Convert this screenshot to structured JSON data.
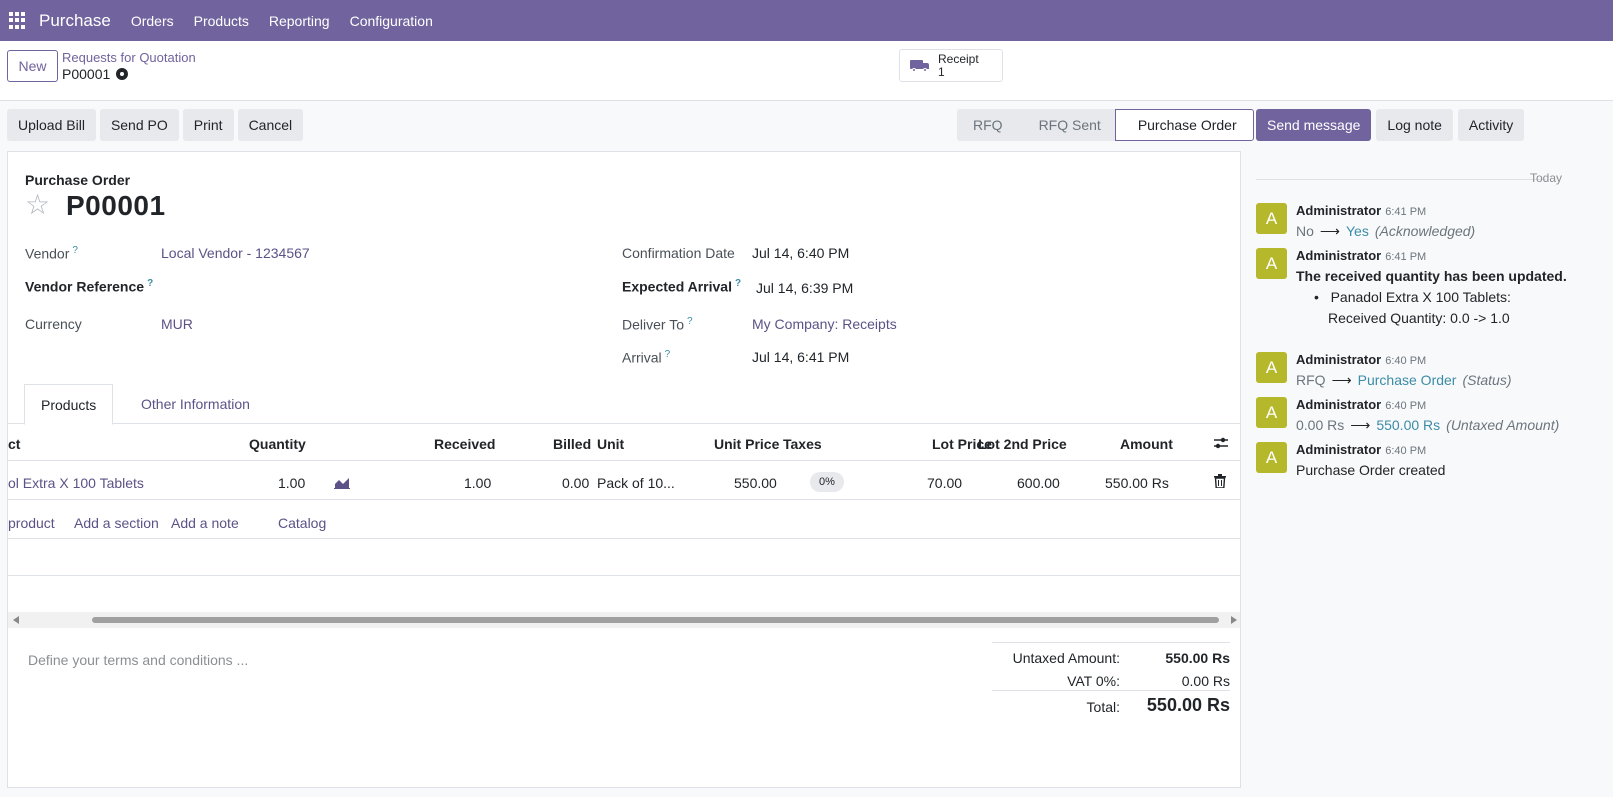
{
  "navbar": {
    "app_name": "Purchase",
    "menu": [
      "Orders",
      "Products",
      "Reporting",
      "Configuration"
    ]
  },
  "control": {
    "new_label": "New",
    "breadcrumb": "Requests for Quotation",
    "record": "P00001",
    "smart_button": {
      "label": "Receipt",
      "count": "1",
      "icon": "truck-icon"
    }
  },
  "actions": [
    "Upload Bill",
    "Send PO",
    "Print",
    "Cancel"
  ],
  "statusbar": {
    "stages": [
      "RFQ",
      "RFQ Sent",
      "Purchase Order"
    ],
    "active": "Purchase Order"
  },
  "chatter_actions": [
    "Send message",
    "Log note",
    "Activity"
  ],
  "form": {
    "doc_type": "Purchase Order",
    "name": "P00001",
    "fields": {
      "vendor_label": "Vendor",
      "vendor": "Local Vendor - 1234567",
      "vendor_ref_label": "Vendor Reference",
      "currency_label": "Currency",
      "currency": "MUR",
      "confirmation_date_label": "Confirmation Date",
      "confirmation_date": "Jul 14, 6:40 PM",
      "expected_arrival_label": "Expected Arrival",
      "expected_arrival": "Jul 14, 6:39 PM",
      "deliver_to_label": "Deliver To",
      "deliver_to": "My Company: Receipts",
      "arrival_label": "Arrival",
      "arrival": "Jul 14, 6:41 PM",
      "help_mark": "?"
    },
    "tabs": [
      "Products",
      "Other Information"
    ],
    "table": {
      "headers": [
        "ct",
        "Quantity",
        "Received",
        "Billed",
        "Unit",
        "Unit Price",
        "Taxes",
        "Lot Price",
        "Lot 2nd Price",
        "Amount"
      ],
      "row": {
        "product": "ol Extra X 100 Tablets",
        "quantity": "1.00",
        "received": "1.00",
        "billed": "0.00",
        "unit": "Pack of 10...",
        "unit_price": "550.00",
        "taxes": "0%",
        "lot_price": "70.00",
        "lot_2nd_price": "600.00",
        "amount": "550.00 Rs"
      },
      "add_links": [
        "product",
        "Add a section",
        "Add a note",
        "Catalog"
      ]
    },
    "terms_placeholder": "Define your terms and conditions ...",
    "totals": {
      "untaxed_label": "Untaxed Amount:",
      "untaxed": "550.00 Rs",
      "vat_label": "VAT 0%:",
      "vat": "0.00 Rs",
      "total_label": "Total:",
      "total": "550.00 Rs"
    }
  },
  "chatter": {
    "date_separator": "Today",
    "messages": [
      {
        "avatar": "A",
        "author": "Administrator",
        "time": "6:41 PM",
        "old": "No",
        "arrow": "⟶",
        "new": "Yes",
        "field": "(Acknowledged)"
      },
      {
        "avatar": "A",
        "author": "Administrator",
        "time": "6:41 PM",
        "headline": "The received quantity has been updated.",
        "bullet": "Panadol Extra X 100 Tablets:",
        "detail": "Received Quantity: 0.0 -> 1.0"
      },
      {
        "avatar": "A",
        "author": "Administrator",
        "time": "6:40 PM",
        "old": "RFQ",
        "arrow": "⟶",
        "new": "Purchase Order",
        "field": "(Status)"
      },
      {
        "avatar": "A",
        "author": "Administrator",
        "time": "6:40 PM",
        "old": "0.00 Rs",
        "arrow": "⟶",
        "new": "550.00 Rs",
        "field": "(Untaxed Amount)"
      },
      {
        "avatar": "A",
        "author": "Administrator",
        "time": "6:40 PM",
        "body": "Purchase Order created"
      }
    ]
  },
  "colors": {
    "brand": "#71639e",
    "link": "#5c5287",
    "tracking": "#3c8ca6",
    "avatar": "#b5b82a"
  }
}
